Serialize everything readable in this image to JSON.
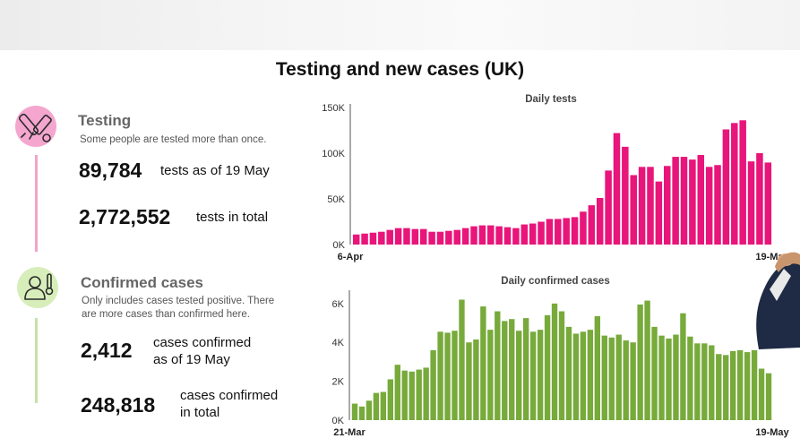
{
  "slide": {
    "title": "Testing and new cases (UK)"
  },
  "testing": {
    "heading": "Testing",
    "note": "Some people are tested more than once.",
    "daily_value": "89,784",
    "daily_label": "tests as of 19 May",
    "total_value": "2,772,552",
    "total_label": "tests in total",
    "icon": "test-tube-icon",
    "color": "#e8157a"
  },
  "cases": {
    "heading": "Confirmed cases",
    "note_line1": "Only includes cases tested positive. There",
    "note_line2": "are more cases than confirmed here.",
    "daily_value": "2,412",
    "daily_label_line1": "cases confirmed",
    "daily_label_line2": "as of 19 May",
    "total_value": "248,818",
    "total_label_line1": "cases confirmed",
    "total_label_line2": "in total",
    "icon": "person-thermometer-icon",
    "color": "#77aa3b"
  },
  "chart_data": [
    {
      "type": "bar",
      "title": "Daily tests",
      "x_start_label": "6-Apr",
      "x_end_label": "19-May",
      "ylim": [
        0,
        150000
      ],
      "yticks": [
        0,
        50000,
        100000,
        150000
      ],
      "ytick_labels": [
        "0K",
        "50K",
        "100K",
        "150K"
      ],
      "color": "#e8157a",
      "values": [
        11000,
        12000,
        13000,
        14000,
        16000,
        18000,
        18000,
        17000,
        17000,
        14000,
        14000,
        15000,
        16000,
        18000,
        20000,
        21000,
        21000,
        20000,
        19000,
        18000,
        22000,
        23000,
        25000,
        28000,
        28000,
        29000,
        30000,
        36000,
        43000,
        51000,
        81000,
        122000,
        107000,
        76000,
        85000,
        85000,
        69000,
        86000,
        96000,
        96000,
        93000,
        98000,
        85000,
        87000,
        126000,
        133000,
        136000,
        91000,
        100000,
        89784
      ]
    },
    {
      "type": "bar",
      "title": "Daily confirmed cases",
      "x_start_label": "21-Mar",
      "x_end_label": "19-May",
      "ylim": [
        0,
        6500
      ],
      "yticks": [
        0,
        2000,
        4000,
        6000
      ],
      "ytick_labels": [
        "0K",
        "2K",
        "4K",
        "6K"
      ],
      "color": "#77aa3b",
      "values": [
        850,
        700,
        1000,
        1400,
        1450,
        2100,
        2850,
        2550,
        2500,
        2600,
        2700,
        3600,
        4550,
        4500,
        4600,
        6200,
        4000,
        4150,
        5850,
        4650,
        5600,
        5100,
        5200,
        4600,
        5250,
        4550,
        4650,
        5400,
        6000,
        5600,
        4800,
        4450,
        4550,
        4650,
        5350,
        4350,
        4250,
        4400,
        4100,
        4000,
        5950,
        6150,
        4800,
        4350,
        4200,
        4400,
        5500,
        4300,
        3950,
        3950,
        3850,
        3400,
        3350,
        3550,
        3600,
        3500,
        3600,
        2650,
        2412
      ]
    }
  ]
}
